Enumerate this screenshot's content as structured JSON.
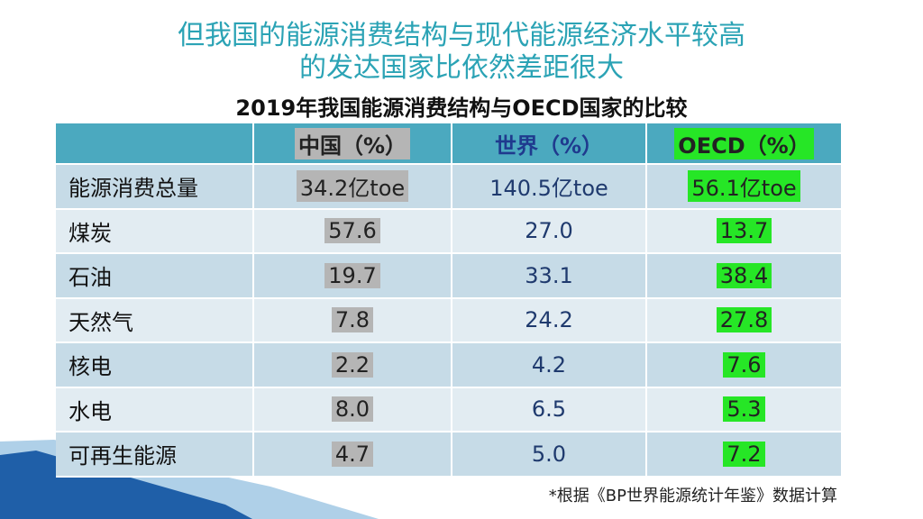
{
  "slide": {
    "title_lines": [
      "但我国的能源消费结构与现代能源经济水平较高",
      "的发达国家比依然差距很大"
    ],
    "subtitle": "2019年我国能源消费结构与OECD国家的比较",
    "table": {
      "columns": [
        "中国（%）",
        "世界（%）",
        "OECD（%）"
      ],
      "rows": [
        [
          "能源消费总量",
          "34.2亿toe",
          "140.5亿toe",
          "56.1亿toe"
        ],
        [
          "煤炭",
          "57.6",
          "27.0",
          "13.7"
        ],
        [
          "石油",
          "19.7",
          "33.1",
          "38.4"
        ],
        [
          "天然气",
          "7.8",
          "24.2",
          "27.8"
        ],
        [
          "核电",
          "2.2",
          "4.2",
          "7.6"
        ],
        [
          "水电",
          "8.0",
          "6.5",
          "5.3"
        ],
        [
          "可再生能源",
          "4.7",
          "5.0",
          "7.2"
        ]
      ]
    },
    "footnote": "*根据《BP世界能源统计年鉴》数据计算"
  }
}
